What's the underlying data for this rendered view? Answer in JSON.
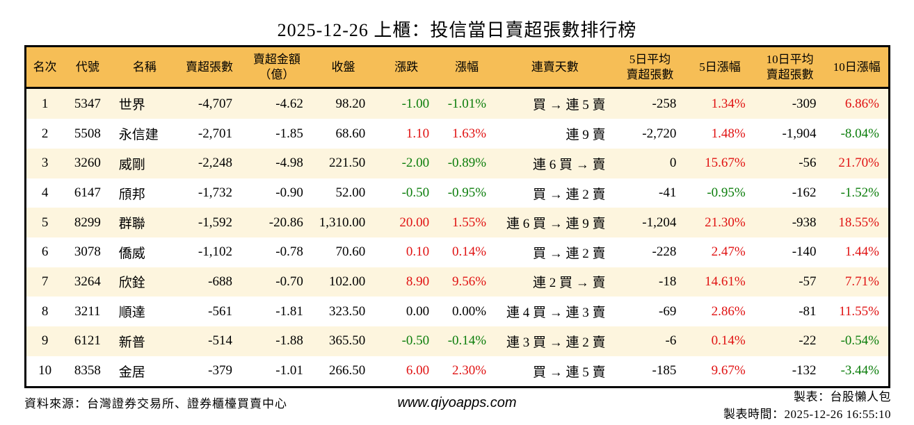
{
  "title": "2025-12-26 上櫃：投信當日賣超張數排行榜",
  "colors": {
    "up": "#E01212",
    "down": "#0B7D0B",
    "header_bg": "#F6BE56",
    "stripe_bg": "#FDF5DE",
    "border": "#000000"
  },
  "footer": {
    "source": "資料來源：台灣證券交易所、證券櫃檯買賣中心",
    "website": "www.qiyoapps.com",
    "credit": "製表：台股懶人包",
    "timestamp": "製表時間：2025-12-26 16:55:10"
  },
  "chart_data": {
    "type": "table",
    "title": "2025-12-26 上櫃：投信當日賣超張數排行榜",
    "columns": [
      {
        "key": "rank",
        "label": "名次",
        "align": "center",
        "width": "4.4%"
      },
      {
        "key": "code",
        "label": "代號",
        "align": "center",
        "width": "5.6%"
      },
      {
        "key": "name",
        "label": "名稱",
        "align": "left",
        "width": "7.6%"
      },
      {
        "key": "sold",
        "label": "賣超張數",
        "align": "right",
        "width": "7.4%"
      },
      {
        "key": "amount",
        "label": "賣超金額\n（億）",
        "align": "right",
        "width": "8.2%"
      },
      {
        "key": "close",
        "label": "收盤",
        "align": "right",
        "width": "7.2%"
      },
      {
        "key": "change",
        "label": "漲跌",
        "align": "right",
        "width": "7.4%"
      },
      {
        "key": "change_pct",
        "label": "漲幅",
        "align": "right",
        "width": "6.6%"
      },
      {
        "key": "streak",
        "label": "連賣天數",
        "align": "right",
        "width": "13.8%"
      },
      {
        "key": "avg5",
        "label": "5日平均\n賣超張數",
        "align": "right",
        "width": "8.2%"
      },
      {
        "key": "pct5",
        "label": "5日漲幅",
        "align": "right",
        "width": "8.0%"
      },
      {
        "key": "avg10",
        "label": "10日平均\n賣超張數",
        "align": "right",
        "width": "8.2%"
      },
      {
        "key": "pct10",
        "label": "10日漲幅",
        "align": "right",
        "width": "7.4%"
      }
    ],
    "rows": [
      {
        "values": {
          "rank": "1",
          "code": "5347",
          "name": "世界",
          "sold": "-4,707",
          "amount": "-4.62",
          "close": "98.20",
          "change": "-1.00",
          "change_pct": "-1.01%",
          "streak": "買 → 連 5 賣",
          "avg5": "-258",
          "pct5": "1.34%",
          "avg10": "-309",
          "pct10": "6.86%"
        },
        "cell_colors": {
          "change": "down",
          "change_pct": "down",
          "pct5": "up",
          "pct10": "up"
        }
      },
      {
        "values": {
          "rank": "2",
          "code": "5508",
          "name": "永信建",
          "sold": "-2,701",
          "amount": "-1.85",
          "close": "68.60",
          "change": "1.10",
          "change_pct": "1.63%",
          "streak": "連 9 賣",
          "avg5": "-2,720",
          "pct5": "1.48%",
          "avg10": "-1,904",
          "pct10": "-8.04%"
        },
        "cell_colors": {
          "change": "up",
          "change_pct": "up",
          "pct5": "up",
          "pct10": "down"
        }
      },
      {
        "values": {
          "rank": "3",
          "code": "3260",
          "name": "威剛",
          "sold": "-2,248",
          "amount": "-4.98",
          "close": "221.50",
          "change": "-2.00",
          "change_pct": "-0.89%",
          "streak": "連 6 買 → 賣",
          "avg5": "0",
          "pct5": "15.67%",
          "avg10": "-56",
          "pct10": "21.70%"
        },
        "cell_colors": {
          "change": "down",
          "change_pct": "down",
          "pct5": "up",
          "pct10": "up"
        }
      },
      {
        "values": {
          "rank": "4",
          "code": "6147",
          "name": "頎邦",
          "sold": "-1,732",
          "amount": "-0.90",
          "close": "52.00",
          "change": "-0.50",
          "change_pct": "-0.95%",
          "streak": "買 → 連 2 賣",
          "avg5": "-41",
          "pct5": "-0.95%",
          "avg10": "-162",
          "pct10": "-1.52%"
        },
        "cell_colors": {
          "change": "down",
          "change_pct": "down",
          "pct5": "down",
          "pct10": "down"
        }
      },
      {
        "values": {
          "rank": "5",
          "code": "8299",
          "name": "群聯",
          "sold": "-1,592",
          "amount": "-20.86",
          "close": "1,310.00",
          "change": "20.00",
          "change_pct": "1.55%",
          "streak": "連 6 買 → 連 9 賣",
          "avg5": "-1,204",
          "pct5": "21.30%",
          "avg10": "-938",
          "pct10": "18.55%"
        },
        "cell_colors": {
          "change": "up",
          "change_pct": "up",
          "pct5": "up",
          "pct10": "up"
        }
      },
      {
        "values": {
          "rank": "6",
          "code": "3078",
          "name": "僑威",
          "sold": "-1,102",
          "amount": "-0.78",
          "close": "70.60",
          "change": "0.10",
          "change_pct": "0.14%",
          "streak": "買 → 連 2 賣",
          "avg5": "-228",
          "pct5": "2.47%",
          "avg10": "-140",
          "pct10": "1.44%"
        },
        "cell_colors": {
          "change": "up",
          "change_pct": "up",
          "pct5": "up",
          "pct10": "up"
        }
      },
      {
        "values": {
          "rank": "7",
          "code": "3264",
          "name": "欣銓",
          "sold": "-688",
          "amount": "-0.70",
          "close": "102.00",
          "change": "8.90",
          "change_pct": "9.56%",
          "streak": "連 2 買 → 賣",
          "avg5": "-18",
          "pct5": "14.61%",
          "avg10": "-57",
          "pct10": "7.71%"
        },
        "cell_colors": {
          "change": "up",
          "change_pct": "up",
          "pct5": "up",
          "pct10": "up"
        }
      },
      {
        "values": {
          "rank": "8",
          "code": "3211",
          "name": "順達",
          "sold": "-561",
          "amount": "-1.81",
          "close": "323.50",
          "change": "0.00",
          "change_pct": "0.00%",
          "streak": "連 4 買 → 連 3 賣",
          "avg5": "-69",
          "pct5": "2.86%",
          "avg10": "-81",
          "pct10": "11.55%"
        },
        "cell_colors": {
          "change": "neutral",
          "change_pct": "neutral",
          "pct5": "up",
          "pct10": "up"
        }
      },
      {
        "values": {
          "rank": "9",
          "code": "6121",
          "name": "新普",
          "sold": "-514",
          "amount": "-1.88",
          "close": "365.50",
          "change": "-0.50",
          "change_pct": "-0.14%",
          "streak": "連 3 買 → 連 2 賣",
          "avg5": "-6",
          "pct5": "0.14%",
          "avg10": "-22",
          "pct10": "-0.54%"
        },
        "cell_colors": {
          "change": "down",
          "change_pct": "down",
          "pct5": "up",
          "pct10": "down"
        }
      },
      {
        "values": {
          "rank": "10",
          "code": "8358",
          "name": "金居",
          "sold": "-379",
          "amount": "-1.01",
          "close": "266.50",
          "change": "6.00",
          "change_pct": "2.30%",
          "streak": "買 → 連 5 賣",
          "avg5": "-185",
          "pct5": "9.67%",
          "avg10": "-132",
          "pct10": "-3.44%"
        },
        "cell_colors": {
          "change": "up",
          "change_pct": "up",
          "pct5": "up",
          "pct10": "down"
        }
      }
    ]
  }
}
